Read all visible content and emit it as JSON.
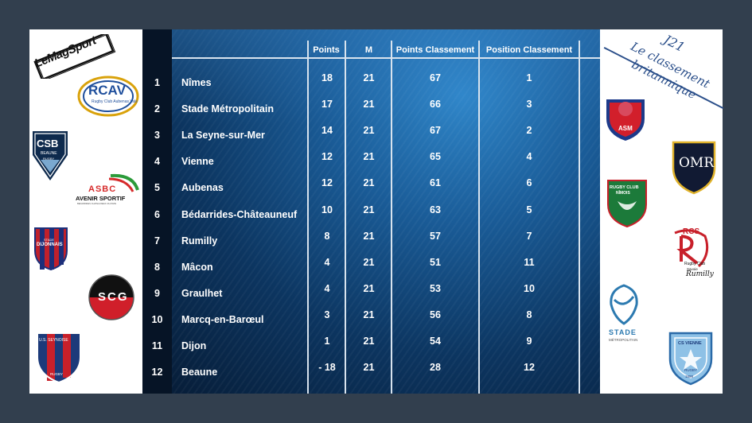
{
  "brand": {
    "logo_text": "LeMagSport"
  },
  "corner_title": {
    "line1": "J21",
    "line2": "Le classement",
    "line3": "britannique"
  },
  "table": {
    "headers": {
      "points": "Points",
      "m": "M",
      "points_classement": "Points Classement",
      "position_classement": "Position Classement"
    },
    "rows": [
      {
        "rank": "1",
        "team": "Nîmes",
        "points": "18",
        "m": "21",
        "points_classement": "67",
        "position_classement": "1"
      },
      {
        "rank": "2",
        "team": "Stade Métropolitain",
        "points": "17",
        "m": "21",
        "points_classement": "66",
        "position_classement": "3"
      },
      {
        "rank": "3",
        "team": "La Seyne-sur-Mer",
        "points": "14",
        "m": "21",
        "points_classement": "67",
        "position_classement": "2"
      },
      {
        "rank": "4",
        "team": "Vienne",
        "points": "12",
        "m": "21",
        "points_classement": "65",
        "position_classement": "4"
      },
      {
        "rank": "5",
        "team": "Aubenas",
        "points": "12",
        "m": "21",
        "points_classement": "61",
        "position_classement": "6"
      },
      {
        "rank": "6",
        "team": "Bédarrides-Châteauneuf",
        "points": "10",
        "m": "21",
        "points_classement": "63",
        "position_classement": "5"
      },
      {
        "rank": "7",
        "team": "Rumilly",
        "points": "8",
        "m": "21",
        "points_classement": "57",
        "position_classement": "7"
      },
      {
        "rank": "8",
        "team": "Mâcon",
        "points": "4",
        "m": "21",
        "points_classement": "51",
        "position_classement": "11"
      },
      {
        "rank": "9",
        "team": "Graulhet",
        "points": "4",
        "m": "21",
        "points_classement": "53",
        "position_classement": "10"
      },
      {
        "rank": "10",
        "team": "Marcq-en-Barœul",
        "points": "3",
        "m": "21",
        "points_classement": "56",
        "position_classement": "8"
      },
      {
        "rank": "11",
        "team": "Dijon",
        "points": "1",
        "m": "21",
        "points_classement": "54",
        "position_classement": "9"
      },
      {
        "rank": "12",
        "team": "Beaune",
        "points": "- 18",
        "m": "21",
        "points_classement": "28",
        "position_classement": "12"
      }
    ]
  },
  "logos": {
    "rcav": {
      "main": "RCAV",
      "sub": "Rugby Club Aubenas Vals"
    },
    "csb": {
      "main": "CSB",
      "sub": "BEAUNE",
      "sub2": "RUGBY"
    },
    "asbc": {
      "main": "ASBC",
      "sub": "AVENIR SPORTIF",
      "sub2": "BEDARRIDES CHATEAUNEUF-DU-PAPE"
    },
    "dijon": {
      "main": "STADE",
      "sub": "DIJONNAIS"
    },
    "scg": {
      "main": "SCG"
    },
    "seynoise": {
      "main": "U.S. SEYNOISE",
      "sub": "RUGBY"
    },
    "asm": {
      "main": "ASM"
    },
    "omr": {
      "main": "OMR"
    },
    "nimes": {
      "main": "RUGBY CLUB",
      "sub": "NÎMOIS"
    },
    "rumilly": {
      "main": "RCS",
      "sub": "Rugby Club",
      "sub2": "Savoie",
      "sub3": "Rumilly"
    },
    "stade_metro": {
      "main": "STADE",
      "sub": "MÉTROPOLITAIN"
    },
    "vienne": {
      "main": "CS VIENNE",
      "sub": "RUGBY",
      "sub2": "1899"
    }
  },
  "colors": {
    "background": "#323f4e",
    "table_dark": "#061426",
    "table_blue": "#1a5c98",
    "title_blue": "#2b4f8a"
  }
}
